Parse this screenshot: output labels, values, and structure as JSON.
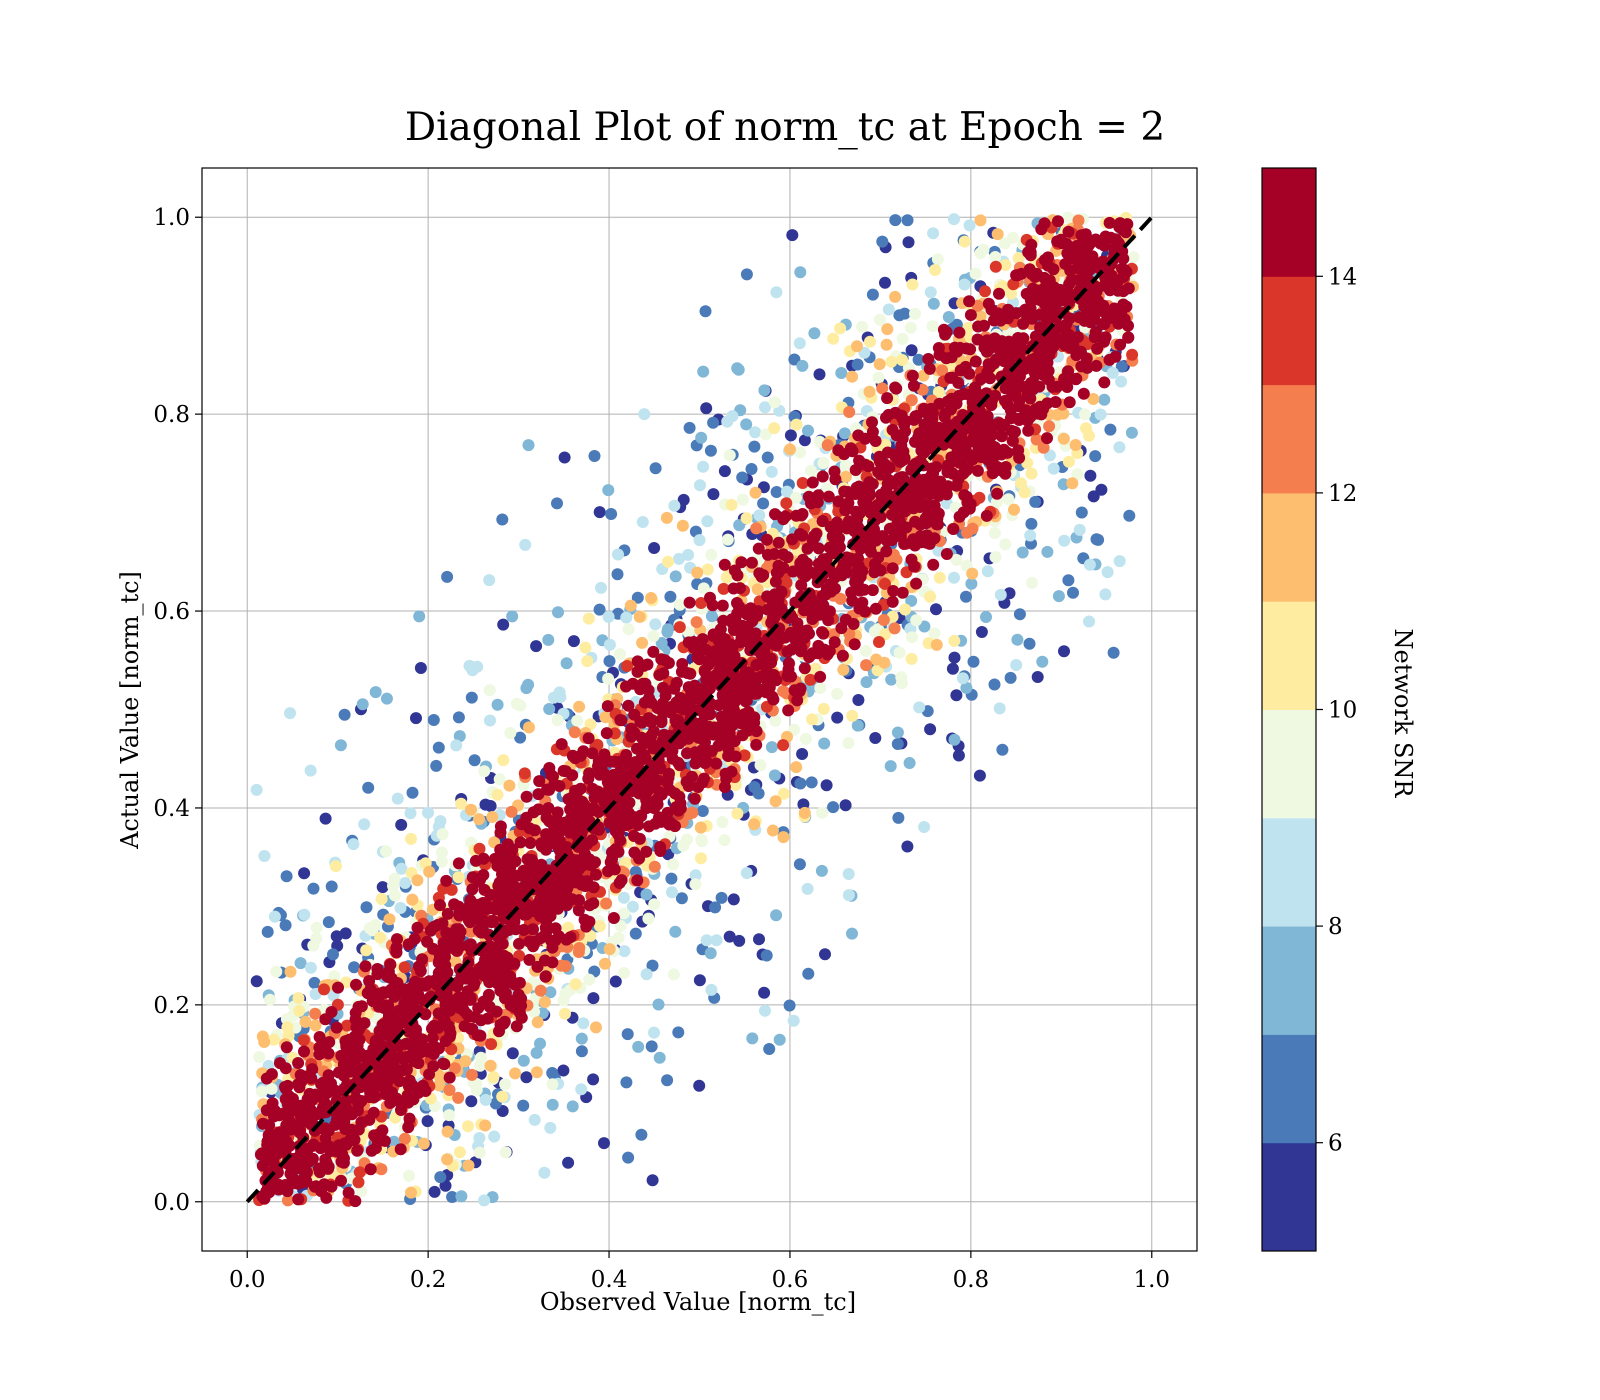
{
  "chart_data": {
    "type": "scatter",
    "title": "Diagonal Plot of norm_tc at Epoch = 2",
    "xlabel": "Observed Value [norm_tc]",
    "ylabel": "Actual Value [norm_tc]",
    "xlim": [
      -0.05,
      1.05
    ],
    "ylim": [
      -0.05,
      1.05
    ],
    "xticks": [
      "0.0",
      "0.2",
      "0.4",
      "0.6",
      "0.8",
      "1.0"
    ],
    "yticks": [
      "0.0",
      "0.2",
      "0.4",
      "0.6",
      "0.8",
      "1.0"
    ],
    "xtick_values": [
      0.0,
      0.2,
      0.4,
      0.6,
      0.8,
      1.0
    ],
    "ytick_values": [
      0.0,
      0.2,
      0.4,
      0.6,
      0.8,
      1.0
    ],
    "grid": true,
    "reference_line": {
      "from": [
        0,
        0
      ],
      "to": [
        1,
        1
      ],
      "style": "dashed",
      "color": "#000000"
    },
    "colorbar": {
      "label": "Network SNR",
      "range": [
        5,
        15
      ],
      "ticks": [
        "6",
        "8",
        "10",
        "12",
        "14"
      ],
      "tick_values": [
        6,
        8,
        10,
        12,
        14
      ],
      "bands": [
        {
          "from": 5,
          "to": 6,
          "color": "#313695"
        },
        {
          "from": 6,
          "to": 7,
          "color": "#4a7ab7"
        },
        {
          "from": 7,
          "to": 8,
          "color": "#80b6d6"
        },
        {
          "from": 8,
          "to": 9,
          "color": "#bfe3ef"
        },
        {
          "from": 9,
          "to": 10,
          "color": "#eff8e1"
        },
        {
          "from": 10,
          "to": 11,
          "color": "#feeda1"
        },
        {
          "from": 11,
          "to": 12,
          "color": "#fdbe70"
        },
        {
          "from": 12,
          "to": 13,
          "color": "#f57e4e"
        },
        {
          "from": 13,
          "to": 14,
          "color": "#da372a"
        },
        {
          "from": 14,
          "to": 15,
          "color": "#a50026"
        }
      ]
    },
    "distribution": {
      "description_of_bands": "points cluster around the y=x diagonal; high-SNR points lie in a tight band, low-SNR points scatter widely",
      "snr_vs_spread": [
        {
          "snr_range": [
            14,
            15
          ],
          "typical_abs_residual": 0.06
        },
        {
          "snr_range": [
            12,
            14
          ],
          "typical_abs_residual": 0.1
        },
        {
          "snr_range": [
            9,
            12
          ],
          "typical_abs_residual": 0.17
        },
        {
          "snr_range": [
            5,
            9
          ],
          "typical_abs_residual": 0.3
        }
      ]
    }
  }
}
